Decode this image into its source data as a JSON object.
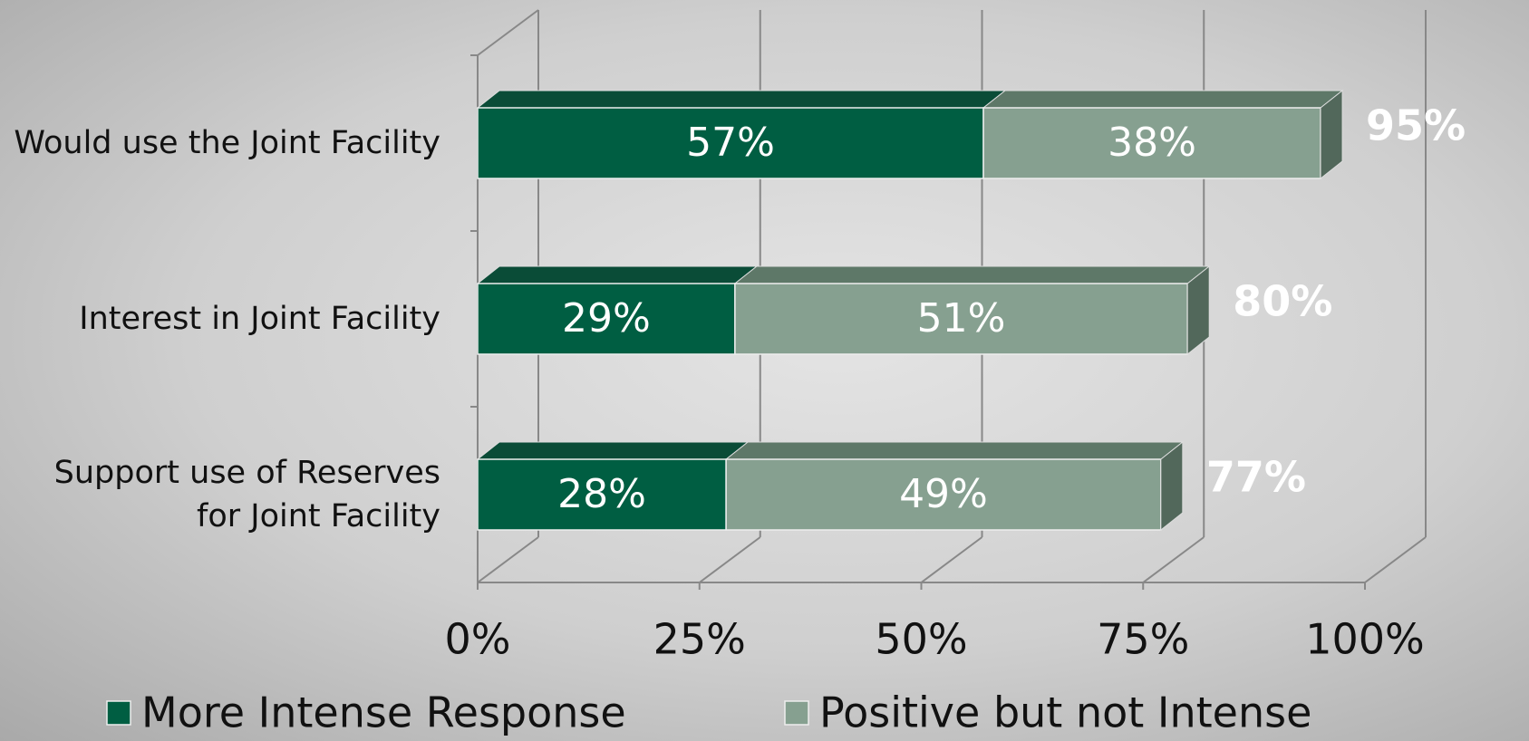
{
  "chart_data": {
    "type": "bar",
    "orientation": "horizontal",
    "stacked": true,
    "categories": [
      "Would use the Joint Facility",
      "Interest in Joint Facility",
      "Support  use of Reserves for Joint Facility"
    ],
    "series": [
      {
        "name": "More Intense Response",
        "color": "#005e42",
        "values": [
          57,
          29,
          28
        ],
        "value_labels": [
          "57%",
          "29%",
          "28%"
        ]
      },
      {
        "name": "Positive but not Intense",
        "color": "#86a090",
        "values": [
          38,
          51,
          49
        ],
        "value_labels": [
          "38%",
          "51%",
          "49%"
        ]
      }
    ],
    "totals": [
      95,
      80,
      77
    ],
    "total_labels": [
      "95%",
      "80%",
      "77%"
    ],
    "xlim": [
      0,
      100
    ],
    "xticks": [
      {
        "value": 0,
        "label": "0%"
      },
      {
        "value": 25,
        "label": "25%"
      },
      {
        "value": 50,
        "label": "50%"
      },
      {
        "value": 75,
        "label": "75%"
      },
      {
        "value": 100,
        "label": "100%"
      }
    ],
    "grid": true,
    "legend": "bottom"
  }
}
